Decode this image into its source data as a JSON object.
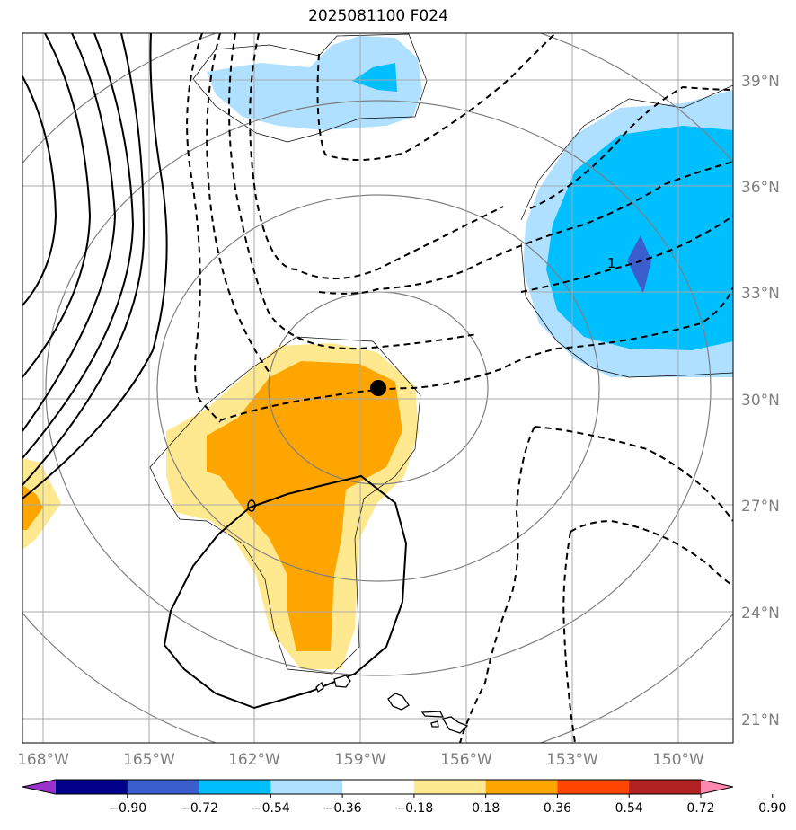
{
  "title": "2025081100 F024",
  "lat_labels": [
    "39°N",
    "36°N",
    "33°N",
    "30°N",
    "27°N",
    "24°N",
    "21°N"
  ],
  "lon_labels": [
    "168°W",
    "165°W",
    "162°W",
    "159°W",
    "156°W",
    "153°W",
    "150°W"
  ],
  "contour_label": "1",
  "colorbar": {
    "ticks": [
      "−0.90",
      "−0.72",
      "−0.54",
      "−0.36",
      "−0.18",
      "0.18",
      "0.36",
      "0.54",
      "0.72",
      "0.90"
    ],
    "colors": [
      "#9932cc",
      "#00008b",
      "#3a5fcd",
      "#00bfff",
      "#b0e0ff",
      "#ffffff",
      "#ffe990",
      "#ffa500",
      "#ff4500",
      "#b22222",
      "#ff88b0"
    ]
  },
  "legend_marker": "storm-center"
}
